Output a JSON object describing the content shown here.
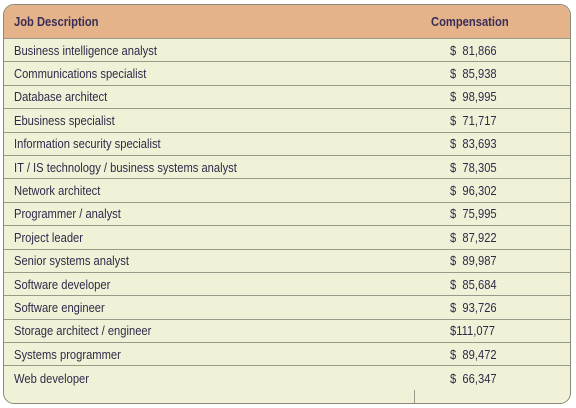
{
  "table": {
    "headers": {
      "job_description": "Job Description",
      "compensation": "Compensation"
    },
    "rows": [
      {
        "job": "Business intelligence analyst",
        "pay": "$  81,866"
      },
      {
        "job": "Communications specialist",
        "pay": "$  85,938"
      },
      {
        "job": "Database architect",
        "pay": "$  98,995"
      },
      {
        "job": "Ebusiness specialist",
        "pay": "$  71,717"
      },
      {
        "job": "Information security specialist",
        "pay": "$  83,693"
      },
      {
        "job": "IT / IS technology / business systems analyst",
        "pay": "$  78,305"
      },
      {
        "job": "Network architect",
        "pay": "$  96,302"
      },
      {
        "job": "Programmer / analyst",
        "pay": "$  75,995"
      },
      {
        "job": "Project leader",
        "pay": "$  87,922"
      },
      {
        "job": "Senior systems analyst",
        "pay": "$  89,987"
      },
      {
        "job": "Software developer",
        "pay": "$  85,684"
      },
      {
        "job": "Software engineer",
        "pay": "$  93,726"
      },
      {
        "job": "Storage architect / engineer",
        "pay": "$111,077"
      },
      {
        "job": "Systems programmer",
        "pay": "$  89,472"
      },
      {
        "job": "Web developer",
        "pay": "$  66,347"
      }
    ]
  },
  "colors": {
    "header_background": "#e4b389",
    "row_background": "#f0f1d6",
    "text": "#2f2a4a",
    "rule": "#9a9a8a"
  }
}
